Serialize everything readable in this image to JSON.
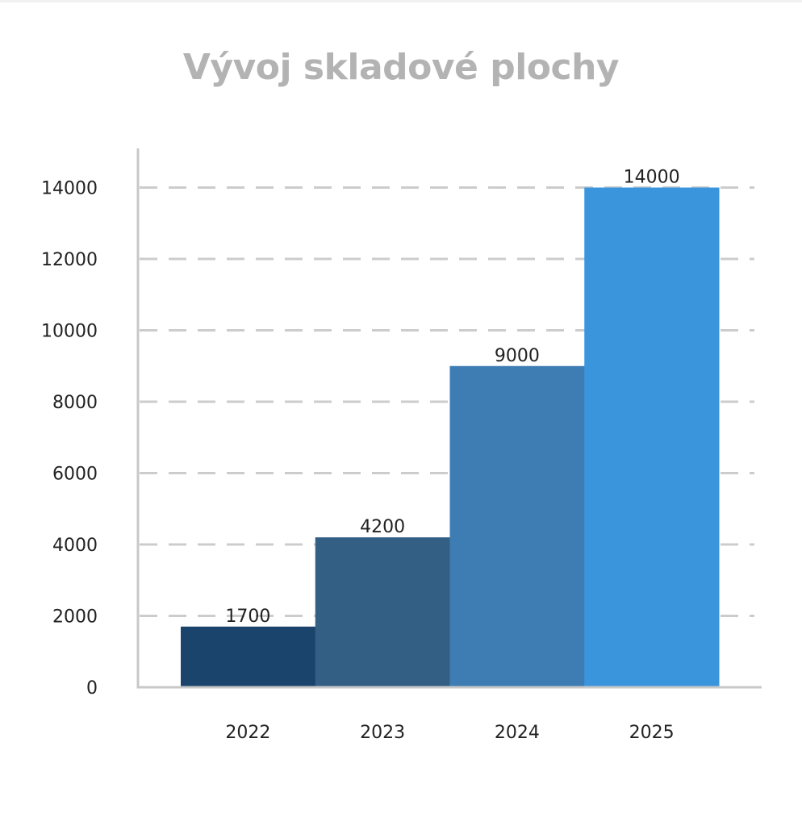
{
  "chart_data": {
    "type": "bar",
    "title": "Vývoj skladové plochy",
    "xlabel": "",
    "ylabel": "",
    "categories": [
      "2022",
      "2023",
      "2024",
      "2025"
    ],
    "values": [
      1700,
      4200,
      9000,
      14000
    ],
    "data_labels": [
      "1700",
      "4200",
      "9000",
      "14000"
    ],
    "colors": [
      "#1b446d",
      "#345f84",
      "#3d7db4",
      "#3b95dd"
    ],
    "ylim": [
      0,
      15000
    ],
    "yticks": [
      0,
      2000,
      4000,
      6000,
      8000,
      10000,
      12000,
      14000
    ],
    "ytick_labels": [
      "0",
      "2000",
      "4000",
      "6000",
      "8000",
      "10000",
      "12000",
      "14000"
    ],
    "grid": true,
    "grid_style": "dashed",
    "grid_color": "#cccccc",
    "axis_color": "#c8c8c8",
    "title_color": "#b3b3b3",
    "legend": "none"
  }
}
